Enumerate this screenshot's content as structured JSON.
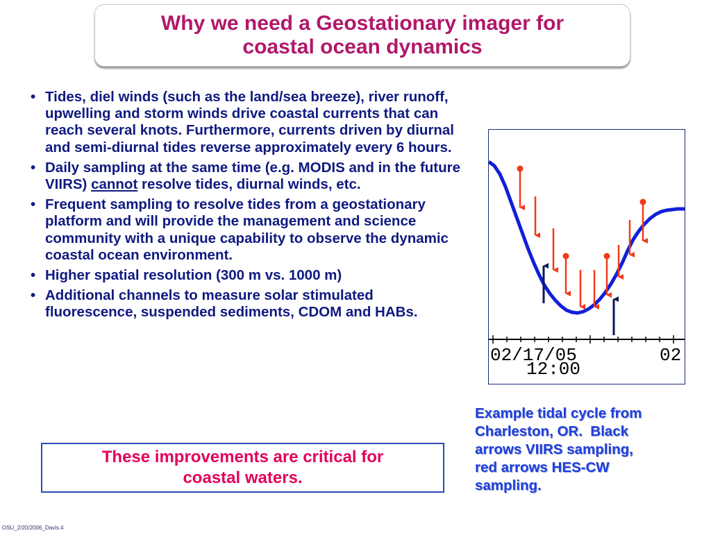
{
  "title": {
    "line1": "Why we need a Geostationary imager for",
    "line2": "coastal ocean dynamics"
  },
  "bullets": [
    {
      "text": "Tides, diel winds (such as the land/sea breeze), river runoff, upwelling and storm winds drive coastal currents that can reach several knots. Furthermore, currents driven by diurnal and semi-diurnal tides reverse approximately every 6 hours."
    },
    {
      "before": "Daily sampling at the same time (e.g. MODIS and in the future VIIRS) ",
      "underlined": "cannot",
      "after": " resolve tides, diurnal winds, etc."
    },
    {
      "text": "Frequent sampling to resolve tides from a geostationary platform and will provide the management and science community with a unique capability to observe the dynamic coastal ocean environment."
    },
    {
      "text": "Higher spatial resolution (300 m vs. 1000 m)"
    },
    {
      "text": "Additional channels to measure solar stimulated fluorescence, suspended sediments, CDOM and HABs."
    }
  ],
  "bullet_glyph": "•",
  "callout": {
    "line1": "These improvements are critical for",
    "line2": "coastal waters."
  },
  "figure": {
    "date_label": "02/17/05",
    "date_label_2": "02",
    "time_label": "12:00",
    "colors": {
      "curve": "#1020d8",
      "hes_arrows": "#f03a1a",
      "viirs_arrows": "#0c1a55"
    }
  },
  "caption": {
    "lines": [
      "Example tidal cycle from",
      "Charleston, OR.  Black",
      "arrows VIIRS sampling,",
      "red arrows HES-CW",
      "sampling."
    ]
  },
  "footer": "OSU_2/20/2006_Davis.4"
}
